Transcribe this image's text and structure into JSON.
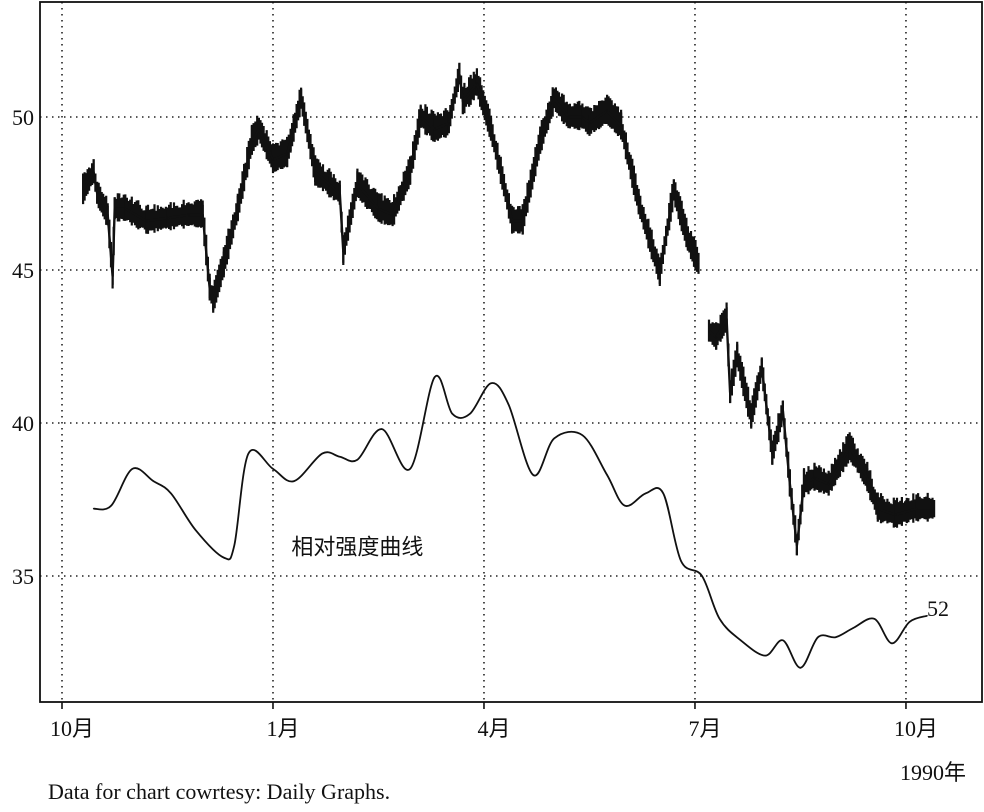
{
  "chart_data": {
    "type": "line",
    "title": "",
    "xlabel": "",
    "ylabel": "",
    "ylim": [
      30.5,
      56.5
    ],
    "y_ticks": [
      50,
      45,
      40,
      35
    ],
    "y_tick_labels": [
      "50",
      "45",
      "40",
      "35"
    ],
    "x_ticks": [
      0,
      3,
      6,
      9,
      12
    ],
    "x_tick_labels": [
      "10月",
      "1月",
      "4月",
      "7月",
      "10月"
    ],
    "x_secondary_label": "1990年",
    "grid": true,
    "annotations": [
      {
        "text": "相对强度曲线",
        "x": 4.2,
        "y": 35.7
      },
      {
        "text": "52",
        "x": 12.3,
        "y": 33.7
      }
    ],
    "series": [
      {
        "style": "price-bars",
        "x": [
          0.3,
          0.45,
          0.5,
          0.65,
          0.72,
          0.75,
          0.9,
          1.2,
          1.5,
          1.8,
          2.0,
          2.1,
          2.15,
          2.3,
          2.5,
          2.7,
          2.8,
          3.0,
          3.2,
          3.25,
          3.4,
          3.6,
          3.8,
          3.95,
          4.0,
          4.2,
          4.5,
          4.7,
          4.95,
          5.1,
          5.3,
          5.5,
          5.65,
          5.7,
          5.9,
          6.1,
          6.4,
          6.55,
          6.8,
          7.0,
          7.2,
          7.4,
          7.5,
          7.75,
          7.95,
          8.2,
          8.5,
          8.7,
          8.9,
          9.05,
          9.2,
          9.3,
          9.45,
          9.5,
          9.6,
          9.8,
          9.95,
          10.1,
          10.25,
          10.35,
          10.45,
          10.55,
          10.7,
          10.9,
          11.2,
          11.45,
          11.6,
          11.85,
          12.15,
          12.4
        ],
        "values": [
          47.6,
          48.2,
          47.5,
          46.8,
          44.8,
          47.0,
          47.0,
          46.6,
          46.7,
          46.8,
          46.8,
          44.4,
          44.0,
          45.2,
          47.0,
          49.2,
          49.6,
          48.6,
          48.8,
          49.2,
          50.6,
          48.2,
          47.8,
          47.5,
          45.6,
          47.8,
          47.0,
          46.8,
          48.2,
          50.0,
          49.6,
          49.8,
          51.4,
          50.5,
          51.1,
          49.6,
          46.6,
          46.6,
          49.2,
          50.6,
          50.0,
          50.0,
          49.8,
          50.2,
          49.7,
          47.2,
          44.9,
          47.6,
          46.0,
          45.2,
          43.0,
          42.8,
          43.4,
          41.0,
          42.2,
          40.2,
          41.8,
          39.0,
          40.4,
          38.0,
          36.0,
          38.0,
          38.2,
          38.0,
          39.2,
          38.2,
          37.2,
          37.0,
          37.2,
          37.2
        ]
      },
      {
        "style": "smooth-line",
        "x": [
          0.45,
          0.7,
          1.0,
          1.3,
          1.55,
          1.9,
          2.3,
          2.45,
          2.65,
          3.0,
          3.3,
          3.7,
          3.95,
          4.2,
          4.55,
          4.95,
          5.3,
          5.55,
          5.8,
          6.1,
          6.35,
          6.7,
          7.0,
          7.4,
          7.75,
          8.0,
          8.3,
          8.55,
          8.8,
          9.1,
          9.35,
          9.65,
          10.0,
          10.25,
          10.5,
          10.75,
          11.0,
          11.25,
          11.55,
          11.8,
          12.05,
          12.3
        ],
        "values": [
          37.2,
          37.3,
          38.5,
          38.1,
          37.7,
          36.5,
          35.6,
          36.0,
          39.0,
          38.5,
          38.1,
          39.0,
          38.9,
          38.8,
          39.8,
          38.5,
          41.5,
          40.3,
          40.3,
          41.3,
          40.6,
          38.3,
          39.5,
          39.6,
          38.3,
          37.3,
          37.7,
          37.7,
          35.5,
          35.0,
          33.6,
          32.9,
          32.4,
          32.9,
          32.0,
          33.0,
          33.0,
          33.3,
          33.6,
          32.8,
          33.5,
          33.7
        ]
      }
    ]
  },
  "footer": {
    "credit": "Data for chart cowrtesy: Daily Graphs."
  }
}
